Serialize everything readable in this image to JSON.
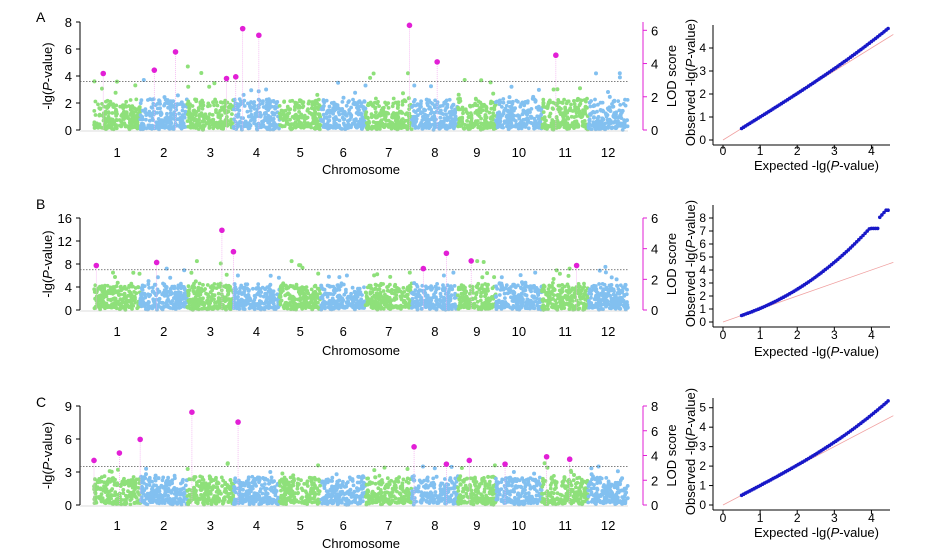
{
  "colors": {
    "green": "#8ee07a",
    "blue": "#82c0f0",
    "lod": "#e21fd6",
    "lod_line": "#f2a7ee",
    "qq_points": "#1818c8",
    "qq_line": "#f0a0a0",
    "threshold": "#555555"
  },
  "chart_data": [
    {
      "type": "scatter",
      "panel_label": "A",
      "xlabel": "Chromosome",
      "ylabel": "-lg(P-value)",
      "ylabel2": "LOD score",
      "categories": [
        "1",
        "2",
        "3",
        "4",
        "5",
        "6",
        "7",
        "8",
        "9",
        "10",
        "11",
        "12"
      ],
      "ylim": [
        0,
        8
      ],
      "yticks": [
        "0",
        "2",
        "4",
        "6",
        "8"
      ],
      "lod_ylim": [
        0,
        6.5
      ],
      "lod_yticks": [
        "0",
        "2",
        "4",
        "6"
      ],
      "threshold": 3.6,
      "top_background": [
        3.6,
        3.7,
        4.7,
        3.0,
        2.6,
        3.5,
        4.2,
        3.3,
        3.7,
        3.2,
        3.1,
        4.2
      ],
      "lod_peaks": [
        {
          "chromosome": 1,
          "pos": 0.2,
          "lod": 3.4
        },
        {
          "chromosome": 2,
          "pos": 0.3,
          "lod": 3.6
        },
        {
          "chromosome": 2,
          "pos": 0.75,
          "lod": 4.7
        },
        {
          "chromosome": 3,
          "pos": 0.85,
          "lod": 3.1
        },
        {
          "chromosome": 4,
          "pos": 0.05,
          "lod": 3.2
        },
        {
          "chromosome": 4,
          "pos": 0.2,
          "lod": 6.1
        },
        {
          "chromosome": 4,
          "pos": 0.55,
          "lod": 5.7
        },
        {
          "chromosome": 7,
          "pos": 0.95,
          "lod": 6.3
        },
        {
          "chromosome": 8,
          "pos": 0.55,
          "lod": 4.1
        },
        {
          "chromosome": 11,
          "pos": 0.3,
          "lod": 4.5
        }
      ],
      "qq": {
        "type": "scatter",
        "xlabel": "Expected -lg(P-value)",
        "ylabel": "Observed -lg(P-value)",
        "xlim": [
          0,
          4.5
        ],
        "ylim": [
          0,
          5
        ],
        "xticks": [
          "0",
          "1",
          "2",
          "3",
          "4"
        ],
        "yticks": [
          "0",
          "1",
          "2",
          "3",
          "4"
        ],
        "max_expected": 4.45,
        "max_observed": 4.85
      }
    },
    {
      "type": "scatter",
      "panel_label": "B",
      "xlabel": "Chromosome",
      "ylabel": "-lg(P-value)",
      "ylabel2": "LOD score",
      "categories": [
        "1",
        "2",
        "3",
        "4",
        "5",
        "6",
        "7",
        "8",
        "9",
        "10",
        "11",
        "12"
      ],
      "ylim": [
        0,
        16
      ],
      "yticks": [
        "0",
        "4",
        "8",
        "12",
        "16"
      ],
      "lod_ylim": [
        0,
        6
      ],
      "lod_yticks": [
        "0",
        "2",
        "4",
        "6"
      ],
      "threshold": 7.0,
      "top_background": [
        6.5,
        7.2,
        8.5,
        6.0,
        8.5,
        6.0,
        6.5,
        6.5,
        8.5,
        6.5,
        7.2,
        7.5
      ],
      "lod_peaks": [
        {
          "chromosome": 1,
          "pos": 0.05,
          "lod": 2.9
        },
        {
          "chromosome": 2,
          "pos": 0.35,
          "lod": 3.1
        },
        {
          "chromosome": 3,
          "pos": 0.75,
          "lod": 5.2
        },
        {
          "chromosome": 4,
          "pos": 0.0,
          "lod": 3.8
        },
        {
          "chromosome": 8,
          "pos": 0.25,
          "lod": 2.7
        },
        {
          "chromosome": 8,
          "pos": 0.75,
          "lod": 3.7
        },
        {
          "chromosome": 9,
          "pos": 0.35,
          "lod": 3.2
        },
        {
          "chromosome": 11,
          "pos": 0.75,
          "lod": 2.9
        }
      ],
      "qq": {
        "type": "scatter",
        "xlabel": "Expected -lg(P-value)",
        "ylabel": "Observed -lg(P-value)",
        "xlim": [
          0,
          4.5
        ],
        "ylim": [
          0,
          9
        ],
        "xticks": [
          "0",
          "1",
          "2",
          "3",
          "4"
        ],
        "yticks": [
          "0",
          "1",
          "2",
          "3",
          "4",
          "5",
          "6",
          "7",
          "8"
        ],
        "max_expected": 4.45,
        "max_observed": 8.6
      }
    },
    {
      "type": "scatter",
      "panel_label": "C",
      "xlabel": "Chromosome",
      "ylabel": "-lg(P-value)",
      "ylabel2": "LOD score",
      "categories": [
        "1",
        "2",
        "3",
        "4",
        "5",
        "6",
        "7",
        "8",
        "9",
        "10",
        "11",
        "12"
      ],
      "ylim": [
        0,
        9
      ],
      "yticks": [
        "0",
        "3",
        "6",
        "9"
      ],
      "lod_ylim": [
        0,
        8
      ],
      "lod_yticks": [
        "0",
        "2",
        "4",
        "6",
        "8"
      ],
      "threshold": 3.5,
      "top_background": [
        3.2,
        3.3,
        3.8,
        3.0,
        3.6,
        2.8,
        3.4,
        3.5,
        3.6,
        3.0,
        3.8,
        3.5
      ],
      "lod_peaks": [
        {
          "chromosome": 1,
          "pos": 0.0,
          "lod": 3.6
        },
        {
          "chromosome": 1,
          "pos": 0.55,
          "lod": 4.2
        },
        {
          "chromosome": 2,
          "pos": 0.0,
          "lod": 5.3
        },
        {
          "chromosome": 3,
          "pos": 0.1,
          "lod": 7.5
        },
        {
          "chromosome": 4,
          "pos": 0.1,
          "lod": 6.7
        },
        {
          "chromosome": 8,
          "pos": 0.05,
          "lod": 4.7
        },
        {
          "chromosome": 8,
          "pos": 0.75,
          "lod": 3.3
        },
        {
          "chromosome": 9,
          "pos": 0.3,
          "lod": 3.6
        },
        {
          "chromosome": 10,
          "pos": 0.2,
          "lod": 3.3
        },
        {
          "chromosome": 11,
          "pos": 0.1,
          "lod": 3.9
        },
        {
          "chromosome": 11,
          "pos": 0.6,
          "lod": 3.7
        }
      ],
      "qq": {
        "type": "scatter",
        "xlabel": "Expected -lg(P-value)",
        "ylabel": "Observed -lg(P-value)",
        "xlim": [
          0,
          4.5
        ],
        "ylim": [
          0,
          5.5
        ],
        "xticks": [
          "0",
          "1",
          "2",
          "3",
          "4"
        ],
        "yticks": [
          "0",
          "1",
          "2",
          "3",
          "4",
          "5"
        ],
        "max_expected": 4.45,
        "max_observed": 5.35
      }
    }
  ]
}
